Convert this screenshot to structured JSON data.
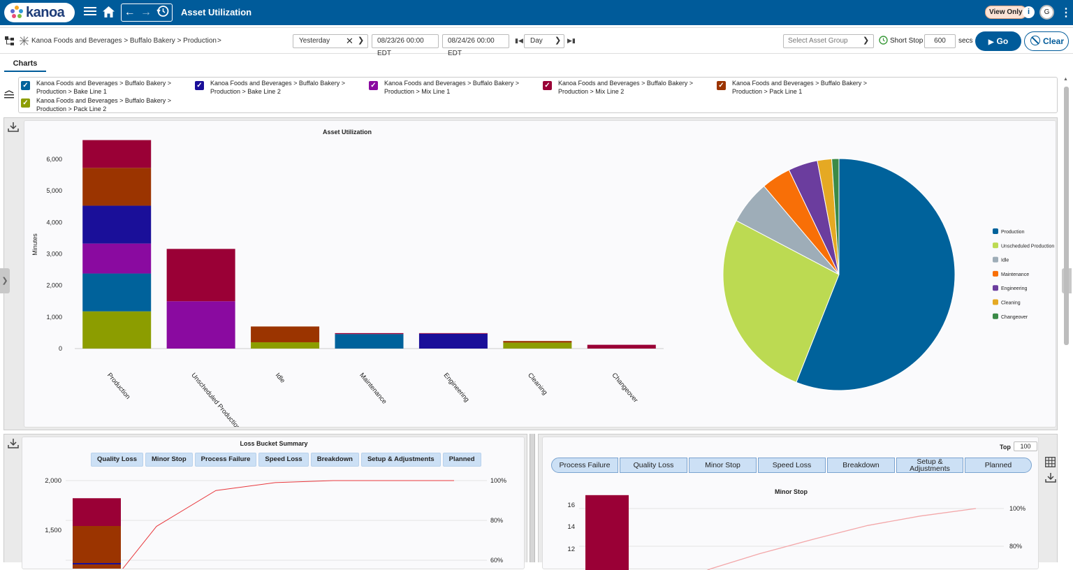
{
  "header": {
    "logo_text": "kanoa",
    "title": "Asset Utilization",
    "view_only": "View Only",
    "avatar_initial": "G"
  },
  "toolbar": {
    "breadcrumb": "Kanoa Foods and Beverages > Buffalo Bakery > Production",
    "breadcrumb_more": ">",
    "period": "Yesterday",
    "start": "08/23/26 00:00 EDT",
    "end": "08/24/26 00:00 EDT",
    "granularity": "Day",
    "asset_group_placeholder": "Select Asset Group",
    "short_stop_label": "Short Stop",
    "short_stop_value": "600",
    "short_stop_unit": "secs",
    "go_label": "Go",
    "clear_label": "Clear"
  },
  "tabs": {
    "charts": "Charts"
  },
  "assets": [
    {
      "line1": "Kanoa Foods and Beverages > Buffalo Bakery >",
      "line2": "Production > Bake Line 1",
      "color": "#00629b"
    },
    {
      "line1": "Kanoa Foods and Beverages > Buffalo Bakery >",
      "line2": "Production > Bake Line 2",
      "color": "#1a0f99"
    },
    {
      "line1": "Kanoa Foods and Beverages > Buffalo Bakery >",
      "line2": "Production > Mix Line 1",
      "color": "#8a0aa0"
    },
    {
      "line1": "Kanoa Foods and Beverages > Buffalo Bakery >",
      "line2": "Production > Mix Line 2",
      "color": "#9a0036"
    },
    {
      "line1": "Kanoa Foods and Beverages > Buffalo Bakery >",
      "line2": "Production > Pack Line 1",
      "color": "#9b3400"
    },
    {
      "line1": "Kanoa Foods and Beverages > Buffalo Bakery >",
      "line2": "Production > Pack Line 2",
      "color": "#8c9d00"
    }
  ],
  "chart_data": [
    {
      "type": "bar",
      "title": "Asset Utilization",
      "ylabel": "Minutes",
      "ylim": [
        0,
        6600
      ],
      "yticks": [
        0,
        1000,
        2000,
        3000,
        4000,
        5000,
        6000
      ],
      "ytick_labels": [
        "0",
        "1,000",
        "2,000",
        "3,000",
        "4,000",
        "5,000",
        "6,000"
      ],
      "categories": [
        "Production",
        "Unscheduled Production",
        "Idle",
        "Maintenance",
        "Engineering",
        "Cleaning",
        "Changeover"
      ],
      "series": [
        {
          "color": "#8c9d00",
          "values": [
            1180,
            0,
            200,
            0,
            0,
            190,
            0
          ]
        },
        {
          "color": "#00629b",
          "values": [
            1200,
            0,
            0,
            460,
            0,
            0,
            0
          ]
        },
        {
          "color": "#8a0aa0",
          "values": [
            950,
            1500,
            0,
            0,
            0,
            0,
            0
          ]
        },
        {
          "color": "#1a0f99",
          "values": [
            1200,
            0,
            0,
            0,
            470,
            0,
            0
          ]
        },
        {
          "color": "#9b3400",
          "values": [
            1200,
            0,
            500,
            0,
            0,
            50,
            0
          ]
        },
        {
          "color": "#9a0036",
          "values": [
            880,
            1660,
            0,
            30,
            20,
            0,
            120
          ]
        }
      ]
    },
    {
      "type": "pie",
      "slices": [
        {
          "label": "Production",
          "value": 56.0,
          "display": "56.0%",
          "color": "#00629b"
        },
        {
          "label": "Unscheduled Production",
          "value": 26.7,
          "display": "26.7%",
          "color": "#bcda52"
        },
        {
          "label": "Idle",
          "value": 6.1,
          "display": "6.1%",
          "color": "#9eadb8"
        },
        {
          "label": "Maintenance",
          "value": 4.1,
          "display": "4.1%",
          "color": "#f86f07"
        },
        {
          "label": "Engineering",
          "value": 4.1,
          "display": "4.1%",
          "color": "#6b3d9e"
        },
        {
          "label": "Cleaning",
          "value": 2.0,
          "display": "2.0%",
          "color": "#e5a923"
        },
        {
          "label": "Changeover",
          "value": 1.0,
          "display": "1.0%",
          "color": "#3b8a47"
        }
      ]
    },
    {
      "type": "bar",
      "title": "Loss Bucket Summary",
      "yticks_left": [
        "2,000",
        "1,500"
      ],
      "yticks_right": [
        "100%",
        "80%",
        "60%"
      ],
      "bar_segments": [
        {
          "color": "#9a0036",
          "value": 280
        },
        {
          "color": "#9b3400",
          "value": 400
        }
      ],
      "cumulative_pct": [
        55,
        77,
        95,
        99,
        100,
        100,
        100,
        100
      ]
    },
    {
      "type": "bar",
      "title": "Minor Stop",
      "yticks_left": [
        "16",
        "14",
        "12"
      ],
      "yticks_right": [
        "100%",
        "80%"
      ],
      "bar_value": 16.9,
      "cumulative_pct": [
        60,
        68,
        76,
        84,
        91,
        96,
        100
      ]
    }
  ],
  "loss_tabs": [
    "Quality Loss",
    "Minor Stop",
    "Process Failure",
    "Speed Loss",
    "Breakdown",
    "Setup & Adjustments",
    "Planned"
  ],
  "right_panel": {
    "top_label": "Top",
    "top_value": "100",
    "tabs": [
      "Process Failure",
      "Quality Loss",
      "Minor Stop",
      "Speed Loss",
      "Breakdown",
      "Setup & Adjustments",
      "Planned"
    ]
  },
  "colors": {
    "brand": "#005b9a",
    "pareto_line": "#e8383d",
    "pareto_line_light": "#f3a7a9"
  }
}
